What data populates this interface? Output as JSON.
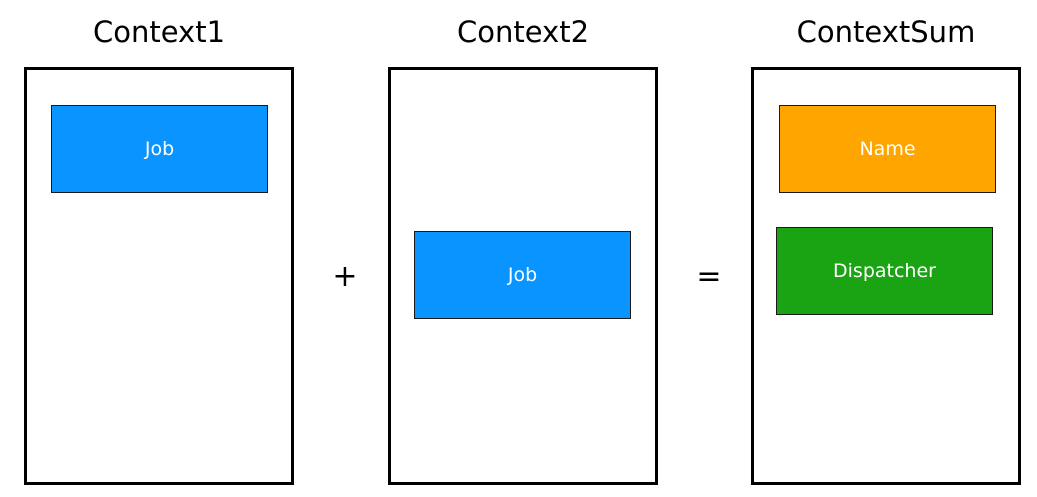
{
  "colors": {
    "job": "#0a94ff",
    "name": "#ffa500",
    "dispatcher": "#1aa312"
  },
  "context1": {
    "title": "Context1",
    "elements": [
      {
        "label": "Job",
        "color_key": "job"
      }
    ]
  },
  "context2": {
    "title": "Context2",
    "elements": [
      {
        "label": "Job",
        "color_key": "job"
      }
    ]
  },
  "context_sum": {
    "title": "ContextSum",
    "elements": [
      {
        "label": "Name",
        "color_key": "name"
      },
      {
        "label": "Dispatcher",
        "color_key": "dispatcher"
      }
    ]
  },
  "operators": {
    "plus": "+",
    "equals": "="
  }
}
